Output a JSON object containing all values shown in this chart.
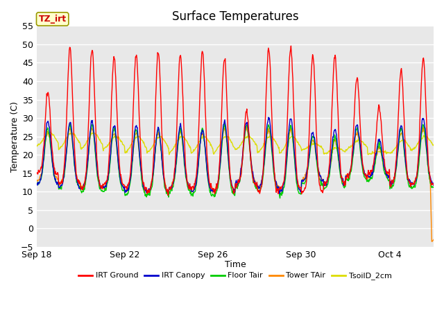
{
  "title": "Surface Temperatures",
  "xlabel": "Time",
  "ylabel": "Temperature (C)",
  "ylim": [
    -5,
    55
  ],
  "yticks": [
    -5,
    0,
    5,
    10,
    15,
    20,
    25,
    30,
    35,
    40,
    45,
    50,
    55
  ],
  "xtick_labels": [
    "Sep 18",
    "Sep 22",
    "Sep 26",
    "Sep 30",
    "Oct 4"
  ],
  "xtick_positions": [
    0,
    4,
    8,
    12,
    16
  ],
  "legend": [
    "IRT Ground",
    "IRT Canopy",
    "Floor Tair",
    "Tower TAir",
    "TsoilD_2cm"
  ],
  "legend_colors": [
    "#ff0000",
    "#0000cc",
    "#00cc00",
    "#ff8800",
    "#dddd00"
  ],
  "fig_bg": "#ffffff",
  "plot_bg": "#e8e8e8",
  "annotation_text": "TZ_irt",
  "annotation_color": "#cc0000",
  "annotation_bg": "#ffffcc",
  "annotation_edge": "#999900",
  "n_days": 18,
  "pts_per_day": 48,
  "title_fontsize": 12
}
